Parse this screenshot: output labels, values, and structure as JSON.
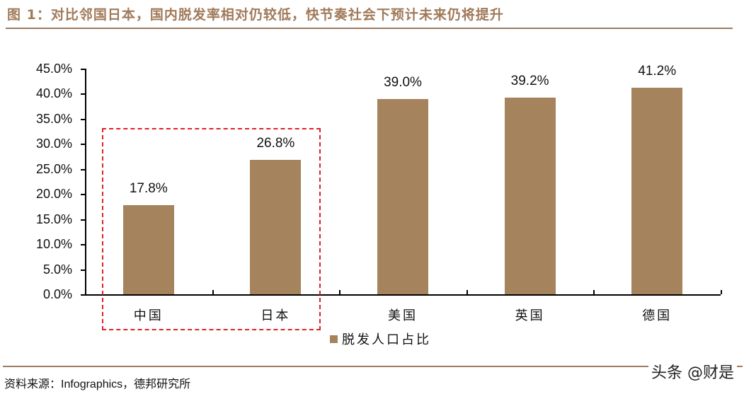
{
  "header": {
    "title": "图 1：对比邻国日本，国内脱发率相对仍较低，快节奏社会下预计未来仍将提升"
  },
  "footer": {
    "source": "资料来源：Infographics，德邦研究所",
    "watermark": "头条 @财是"
  },
  "colors": {
    "bar": "#a5835c",
    "title": "#a07a5a",
    "rule": "#9c7b62",
    "highlight_box": "#e0202a"
  },
  "chart_data": {
    "type": "bar",
    "title": "图 1：对比邻国日本，国内脱发率相对仍较低，快节奏社会下预计未来仍将提升",
    "categories": [
      "中国",
      "日本",
      "美国",
      "英国",
      "德国"
    ],
    "series": [
      {
        "name": "脱发人口占比",
        "values": [
          17.8,
          26.8,
          39.0,
          39.2,
          41.2
        ]
      }
    ],
    "value_labels": [
      "17.8%",
      "26.8%",
      "39.0%",
      "39.2%",
      "41.2%"
    ],
    "xlabel": "",
    "ylabel": "",
    "ylim": [
      0,
      45
    ],
    "yticks": [
      "0.0%",
      "5.0%",
      "10.0%",
      "15.0%",
      "20.0%",
      "25.0%",
      "30.0%",
      "35.0%",
      "40.0%",
      "45.0%"
    ],
    "grid": false,
    "legend": {
      "position": "bottom",
      "entries": [
        "脱发人口占比"
      ]
    },
    "annotations": [
      "Red dashed box highlighting 中国 and 日本"
    ]
  }
}
